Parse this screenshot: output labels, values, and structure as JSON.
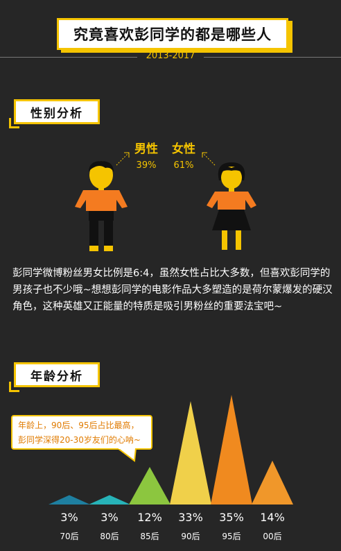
{
  "header": {
    "title": "究竟喜欢彭同学的都是哪些人",
    "years": "2013-2017"
  },
  "gender_section": {
    "tag": "性别分析",
    "male": {
      "label": "男性",
      "pct": "39%"
    },
    "female": {
      "label": "女性",
      "pct": "61%"
    },
    "description": "彭同学微博粉丝男女比例是6:4，虽然女性占比大多数，但喜欢彭同学的男孩子也不少哦~想想彭同学的电影作品大多塑造的是荷尔蒙爆发的硬汉角色，这种英雄又正能量的特质是吸引男粉丝的重要法宝吧~"
  },
  "age_section": {
    "tag": "年龄分析",
    "note_line1": "年龄上，90后、95后占比最高，",
    "note_line2": "彭同学深得20-30岁友们的心呐~"
  },
  "colors": {
    "accent": "#f5c400",
    "male_shirt": "#f47b20",
    "female_shirt": "#f47b20"
  },
  "chart_data": {
    "type": "bar",
    "categories": [
      "70后",
      "80后",
      "85后",
      "90后",
      "95后",
      "00后"
    ],
    "values": [
      3,
      3,
      12,
      33,
      35,
      14
    ],
    "value_labels": [
      "3%",
      "3%",
      "12%",
      "33%",
      "35%",
      "14%"
    ],
    "colors": [
      "#1e7fa0",
      "#27b3b8",
      "#8cc63f",
      "#f0d04a",
      "#f08a1f",
      "#f0972a"
    ],
    "ylim": [
      0,
      35
    ]
  }
}
